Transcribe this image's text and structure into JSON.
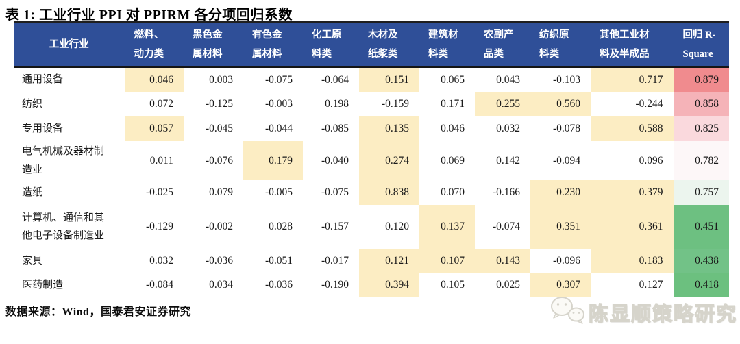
{
  "title": "表 1:  工业行业 PPI 对 PPIRM 各分项回归系数",
  "source": "数据来源：Wind，国泰君安证券研究",
  "watermark": {
    "text": "陈显顺策略研究",
    "icon": "wechat-icon"
  },
  "colors": {
    "header_bg": "#2F4F98",
    "header_text": "#ffffff",
    "highlight": "#FCEDC3",
    "border_dark": "#1f1f1f"
  },
  "table": {
    "corner_header": "工业行业",
    "column_headers": [
      [
        "燃料、",
        "动力类"
      ],
      [
        "黑色金",
        "属材料"
      ],
      [
        "有色金",
        "属材料"
      ],
      [
        "化工原",
        "料类"
      ],
      [
        "木材及",
        "纸浆类"
      ],
      [
        "建筑材",
        "料类"
      ],
      [
        "农副产",
        "品类"
      ],
      [
        "纺织原",
        "料类"
      ],
      [
        "其他工业材",
        "料及半成品"
      ],
      [
        "回归 R-",
        "Square"
      ]
    ],
    "rows": [
      {
        "industry": "通用设备",
        "values": [
          "0.046",
          "0.003",
          "-0.075",
          "-0.064",
          "0.151",
          "0.065",
          "0.043",
          "-0.103",
          "0.717"
        ],
        "highlight": [
          0,
          4,
          8
        ],
        "r2": "0.879",
        "r2_bg": "#F08B8E"
      },
      {
        "industry": "纺织",
        "values": [
          "0.072",
          "-0.125",
          "-0.003",
          "0.198",
          "-0.159",
          "0.171",
          "0.255",
          "0.560",
          "-0.244"
        ],
        "highlight": [
          6,
          7
        ],
        "r2": "0.858",
        "r2_bg": "#F5B3B8"
      },
      {
        "industry": "专用设备",
        "values": [
          "0.057",
          "-0.045",
          "-0.044",
          "-0.085",
          "0.135",
          "0.046",
          "0.032",
          "-0.078",
          "0.588"
        ],
        "highlight": [
          0,
          4,
          8
        ],
        "r2": "0.825",
        "r2_bg": "#FAD9DD"
      },
      {
        "industry": "电气机械及器材制造业",
        "values": [
          "0.011",
          "-0.076",
          "0.179",
          "-0.040",
          "0.274",
          "0.069",
          "0.142",
          "-0.094",
          "0.096"
        ],
        "highlight": [
          2,
          4
        ],
        "r2": "0.782",
        "r2_bg": "#FDF7F8"
      },
      {
        "industry": "造纸",
        "values": [
          "-0.025",
          "0.079",
          "-0.005",
          "-0.075",
          "0.838",
          "0.070",
          "-0.166",
          "0.230",
          "0.379"
        ],
        "highlight": [
          4,
          7,
          8
        ],
        "r2": "0.757",
        "r2_bg": "#ECF5EE"
      },
      {
        "industry": "计算机、通信和其他电子设备制造业",
        "values": [
          "-0.129",
          "-0.002",
          "0.028",
          "-0.157",
          "0.120",
          "0.137",
          "-0.074",
          "0.351",
          "0.361"
        ],
        "highlight": [
          5,
          7,
          8
        ],
        "r2": "0.451",
        "r2_bg": "#6DC081"
      },
      {
        "industry": "家具",
        "values": [
          "0.032",
          "-0.036",
          "-0.051",
          "-0.017",
          "0.121",
          "0.107",
          "0.143",
          "-0.096",
          "0.183"
        ],
        "highlight": [
          4,
          5,
          6,
          8
        ],
        "r2": "0.438",
        "r2_bg": "#72C287"
      },
      {
        "industry": "医药制造",
        "values": [
          "-0.084",
          "0.034",
          "-0.036",
          "-0.190",
          "0.394",
          "0.105",
          "0.025",
          "0.307",
          "0.127"
        ],
        "highlight": [
          4,
          7
        ],
        "r2": "0.418",
        "r2_bg": "#6CC07F"
      }
    ]
  }
}
